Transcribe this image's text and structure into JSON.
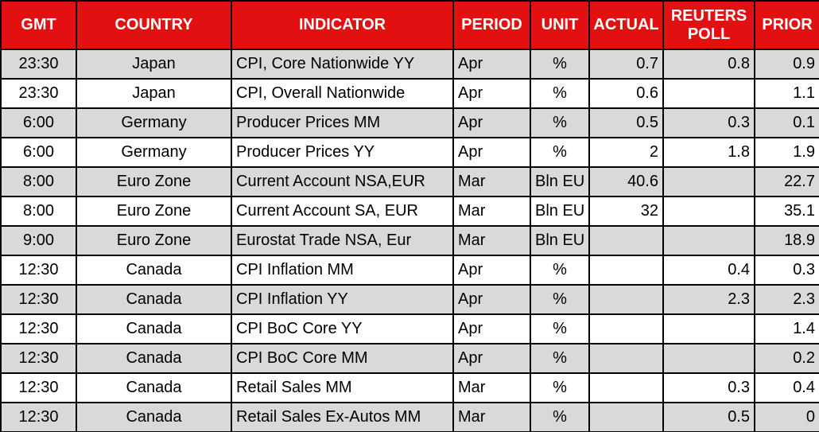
{
  "colors": {
    "header_bg": "#E21010",
    "header_text": "#FFFFFF",
    "shaded_row_bg": "#D9D9D9",
    "plain_row_bg": "#FFFFFF",
    "border": "#000000",
    "text": "#000000"
  },
  "chart_data": {
    "type": "table",
    "title": "Economic calendar / indicator release table",
    "columns": [
      {
        "key": "gmt",
        "label": "GMT",
        "align": "center"
      },
      {
        "key": "country",
        "label": "COUNTRY",
        "align": "center"
      },
      {
        "key": "indicator",
        "label": "INDICATOR",
        "align": "left"
      },
      {
        "key": "period",
        "label": "PERIOD",
        "align": "left"
      },
      {
        "key": "unit",
        "label": "UNIT",
        "align": "center"
      },
      {
        "key": "actual",
        "label": "ACTUAL",
        "align": "right"
      },
      {
        "key": "reuters_poll",
        "label": "REUTERS POLL",
        "align": "right"
      },
      {
        "key": "prior",
        "label": "PRIOR",
        "align": "right"
      }
    ],
    "rows": [
      [
        "23:30",
        "Japan",
        "CPI, Core Nationwide YY",
        "Apr",
        "%",
        "0.7",
        "0.8",
        "0.9"
      ],
      [
        "23:30",
        "Japan",
        "CPI, Overall Nationwide",
        "Apr",
        "%",
        "0.6",
        "",
        "1.1"
      ],
      [
        "6:00",
        "Germany",
        "Producer Prices MM",
        "Apr",
        "%",
        "0.5",
        "0.3",
        "0.1"
      ],
      [
        "6:00",
        "Germany",
        "Producer Prices YY",
        "Apr",
        "%",
        "2",
        "1.8",
        "1.9"
      ],
      [
        "8:00",
        "Euro Zone",
        "Current Account NSA,EUR",
        "Mar",
        "Bln EU",
        "40.6",
        "",
        "22.7"
      ],
      [
        "8:00",
        "Euro Zone",
        "Current Account SA, EUR",
        "Mar",
        "Bln EU",
        "32",
        "",
        "35.1"
      ],
      [
        "9:00",
        "Euro Zone",
        "Eurostat Trade NSA, Eur",
        "Mar",
        "Bln EU",
        "",
        "",
        "18.9"
      ],
      [
        "12:30",
        "Canada",
        "CPI Inflation MM",
        "Apr",
        "%",
        "",
        "0.4",
        "0.3"
      ],
      [
        "12:30",
        "Canada",
        "CPI Inflation YY",
        "Apr",
        "%",
        "",
        "2.3",
        "2.3"
      ],
      [
        "12:30",
        "Canada",
        "CPI BoC Core YY",
        "Apr",
        "%",
        "",
        "",
        "1.4"
      ],
      [
        "12:30",
        "Canada",
        "CPI BoC Core MM",
        "Apr",
        "%",
        "",
        "",
        "0.2"
      ],
      [
        "12:30",
        "Canada",
        "Retail Sales MM",
        "Mar",
        "%",
        "",
        "0.3",
        "0.4"
      ],
      [
        "12:30",
        "Canada",
        "Retail Sales Ex-Autos MM",
        "Mar",
        "%",
        "",
        "0.5",
        "0"
      ]
    ],
    "layout_hints": {
      "shaded_rows": "odd rows (1st, 3rd, ...) are grey #D9D9D9, others white",
      "grid": "on, black 2px lines"
    }
  }
}
